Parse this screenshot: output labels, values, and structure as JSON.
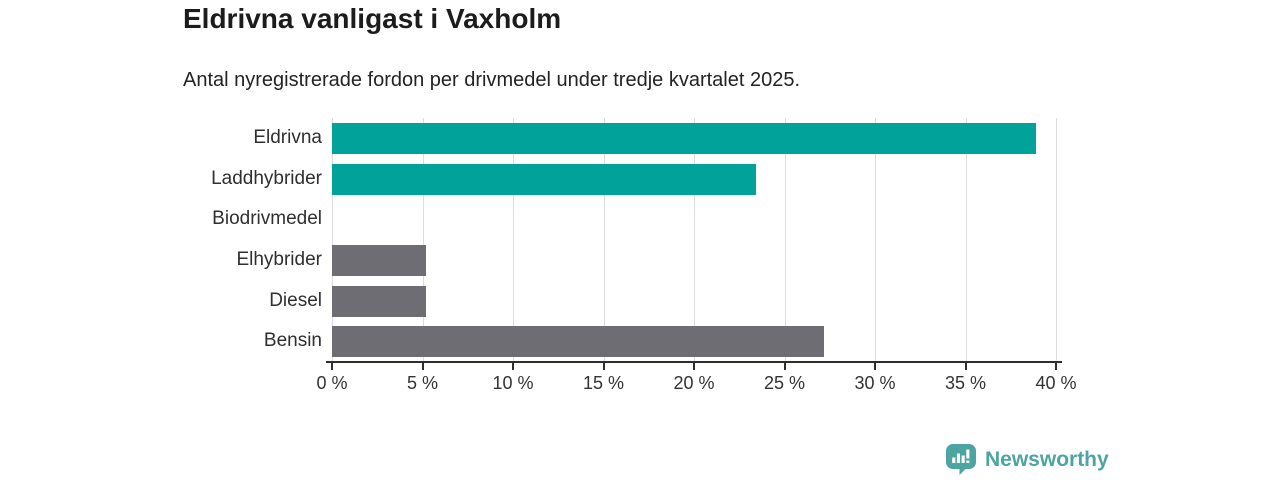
{
  "header": {
    "title": "Eldrivna vanligast i Vaxholm",
    "subtitle": "Antal nyregistrerade fordon per drivmedel under tredje kvartalet 2025."
  },
  "chart_data": {
    "type": "bar",
    "orientation": "horizontal",
    "title": "Eldrivna vanligast i Vaxholm",
    "subtitle": "Antal nyregistrerade fordon per drivmedel under tredje kvartalet 2025.",
    "categories": [
      "Eldrivna",
      "Laddhybrider",
      "Biodrivmedel",
      "Elhybrider",
      "Diesel",
      "Bensin"
    ],
    "values": [
      38.9,
      23.4,
      0,
      5.2,
      5.2,
      27.2
    ],
    "unit": "%",
    "xlabel": "",
    "ylabel": "",
    "xlim": [
      0,
      40
    ],
    "xticks": [
      0,
      5,
      10,
      15,
      20,
      25,
      30,
      35,
      40
    ],
    "xtick_labels": [
      "0 %",
      "5 %",
      "10 %",
      "15 %",
      "20 %",
      "25 %",
      "30 %",
      "35 %",
      "40 %"
    ],
    "grid": true,
    "legend": false,
    "highlighted_categories": [
      "Eldrivna",
      "Laddhybrider"
    ],
    "bar_colors": [
      "#00a29a",
      "#00a29a",
      "#6d6d73",
      "#6d6d73",
      "#6d6d73",
      "#6d6d73"
    ]
  },
  "branding": {
    "name": "Newsworthy"
  },
  "colors": {
    "highlight_bar": "#00a29a",
    "default_bar": "#6d6d73",
    "gridline": "#dcdcdc",
    "axis_line": "#2e2e2e",
    "title_text": "#1c1c1c",
    "label_text": "#2f2f2f",
    "brand": "#4da5a1"
  }
}
